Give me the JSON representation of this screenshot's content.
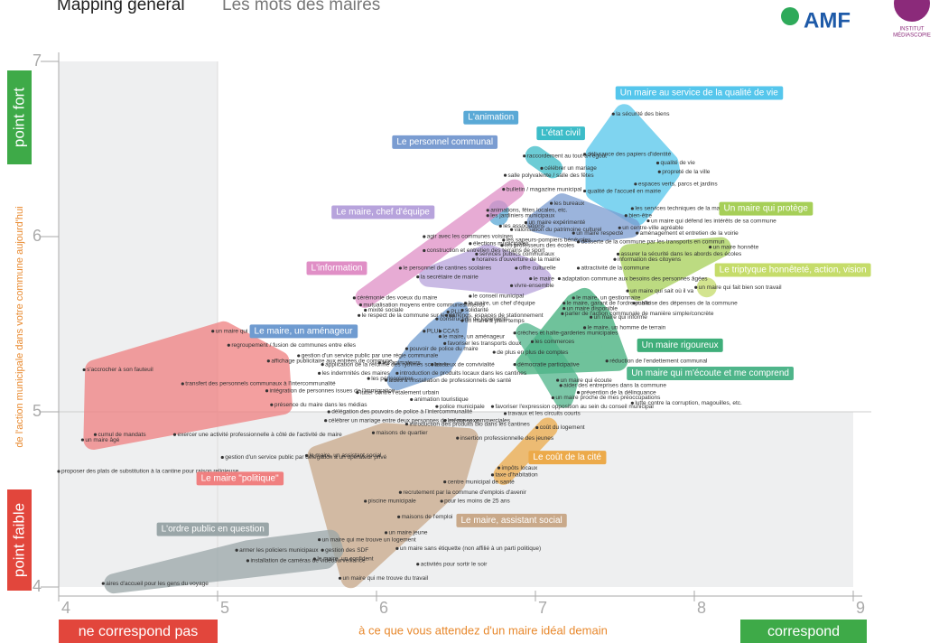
{
  "chart_data": {
    "type": "scatter",
    "title": "Mapping général",
    "subtitle": "Les mots des maires",
    "logos": [
      "AMF",
      "INSTITUT",
      "MÉDIASCOPIE"
    ],
    "y_label": "de l'action municipale dans votre commune aujourd'hui",
    "y_high": "point fort",
    "y_low": "point faible",
    "x_label": "à ce que vous attendez d'un maire idéal demain",
    "x_low": "ne correspond pas",
    "x_high": "correspond",
    "xlim": [
      4,
      9
    ],
    "ylim": [
      4,
      7
    ],
    "xticks": [
      4,
      5,
      6,
      7,
      8,
      9
    ],
    "yticks": [
      4,
      5,
      6,
      7
    ],
    "midpoint": {
      "x": 5,
      "y": 5
    },
    "groups": [
      {
        "name": "Un maire au service de la qualité de vie",
        "color": "#55c6ec",
        "x": 8.03,
        "y": 6.82
      },
      {
        "name": "L'animation",
        "color": "#5aa9d6",
        "x": 6.72,
        "y": 6.68
      },
      {
        "name": "L'état civil",
        "color": "#3cbcc8",
        "x": 7.16,
        "y": 6.59
      },
      {
        "name": "Le personnel communal",
        "color": "#7a9cd1",
        "x": 6.43,
        "y": 6.54
      },
      {
        "name": "Le maire, chef d'équipe",
        "color": "#b7a3dc",
        "x": 6.04,
        "y": 6.14
      },
      {
        "name": "L'information",
        "color": "#e08fc6",
        "x": 5.75,
        "y": 5.82
      },
      {
        "name": "Un maire qui protège",
        "color": "#a6cf58",
        "x": 8.45,
        "y": 6.16
      },
      {
        "name": "Le triptyque honnêteté, action, vision",
        "color": "#c5dc6a",
        "x": 8.62,
        "y": 5.81
      },
      {
        "name": "Le maire, un aménageur",
        "color": "#6f9bd0",
        "x": 5.54,
        "y": 5.46
      },
      {
        "name": "Un maire rigoureux",
        "color": "#3fae7a",
        "x": 7.91,
        "y": 5.38
      },
      {
        "name": "Un maire qui m'écoute et me comprend",
        "color": "#4fb58a",
        "x": 8.1,
        "y": 5.22
      },
      {
        "name": "Le maire \"politique\"",
        "color": "#f08080",
        "x": 5.14,
        "y": 4.62
      },
      {
        "name": "Le coût de la cité",
        "color": "#ecaa4a",
        "x": 7.2,
        "y": 4.74
      },
      {
        "name": "Le maire, assistant social",
        "color": "#c9a98a",
        "x": 6.85,
        "y": 4.38
      },
      {
        "name": "L'ordre public en question",
        "color": "#9aa6a8",
        "x": 4.97,
        "y": 4.33
      }
    ],
    "points": [
      {
        "label": "la sécurité des biens",
        "x": 7.49,
        "y": 6.7,
        "group": 0
      },
      {
        "label": "délivrance des papiers d'identité",
        "x": 7.31,
        "y": 6.47,
        "group": 0
      },
      {
        "label": "qualité de vie",
        "x": 7.77,
        "y": 6.42,
        "group": 0
      },
      {
        "label": "propreté de la ville",
        "x": 7.78,
        "y": 6.37,
        "group": 0
      },
      {
        "label": "espaces verts, parcs et jardins",
        "x": 7.63,
        "y": 6.3,
        "group": 0
      },
      {
        "label": "qualité de l'accueil en mairie",
        "x": 7.31,
        "y": 6.26,
        "group": 0
      },
      {
        "label": "les services techniques de la mairie",
        "x": 7.61,
        "y": 6.16,
        "group": 0
      },
      {
        "label": "bien-être",
        "x": 7.57,
        "y": 6.12,
        "group": 0
      },
      {
        "label": "raccordement au tout-à-l'égout",
        "x": 6.93,
        "y": 6.46,
        "group": 2
      },
      {
        "label": "célébrer un mariage",
        "x": 7.04,
        "y": 6.39,
        "group": 2
      },
      {
        "label": "salle polyvalente / salle des fêtes",
        "x": 6.81,
        "y": 6.35
      },
      {
        "label": "bulletin / magazine municipal",
        "x": 6.8,
        "y": 6.27,
        "group": 5
      },
      {
        "label": "les bureaux",
        "x": 7.1,
        "y": 6.19,
        "group": 3
      },
      {
        "label": "animations, fêtes locales, etc.",
        "x": 6.7,
        "y": 6.15,
        "group": 1
      },
      {
        "label": "les jardiniers municipaux",
        "x": 6.7,
        "y": 6.12,
        "group": 1
      },
      {
        "label": "les associations",
        "x": 6.78,
        "y": 6.06
      },
      {
        "label": "un maire expérimenté",
        "x": 6.94,
        "y": 6.08,
        "group": 3
      },
      {
        "label": "valorisation du patrimoine culturel",
        "x": 6.85,
        "y": 6.04
      },
      {
        "label": "agir avec les communes voisines",
        "x": 6.3,
        "y": 6.0,
        "color": "#2a3f9a"
      },
      {
        "label": "les sapeurs-pompiers bénévoles",
        "x": 6.8,
        "y": 5.98
      },
      {
        "label": "élections municipales",
        "x": 6.59,
        "y": 5.96
      },
      {
        "label": "les professeurs des écoles",
        "x": 6.79,
        "y": 5.95
      },
      {
        "label": "construction et entretien des terrains de sport",
        "x": 6.3,
        "y": 5.92,
        "group": 5
      },
      {
        "label": "services publics communaux",
        "x": 6.63,
        "y": 5.9,
        "group": 4
      },
      {
        "label": "horaires d'ouverture de la mairie",
        "x": 6.61,
        "y": 5.87,
        "group": 4
      },
      {
        "label": "le personnel de cantines scolaires",
        "x": 6.15,
        "y": 5.82
      },
      {
        "label": "offre culturelle",
        "x": 6.88,
        "y": 5.82,
        "group": 4
      },
      {
        "label": "la secrétaire de mairie",
        "x": 6.26,
        "y": 5.77,
        "group": 4
      },
      {
        "label": "le maire",
        "x": 6.97,
        "y": 5.76,
        "color": "#e0302a",
        "group": 4
      },
      {
        "label": "vivre-ensemble",
        "x": 6.85,
        "y": 5.72,
        "group": 4
      },
      {
        "label": "adaptation commune aux besoins des personnes âgées",
        "x": 7.15,
        "y": 5.76
      },
      {
        "label": "attractivité de la commune",
        "x": 7.27,
        "y": 5.82
      },
      {
        "label": "un maire respecté",
        "x": 7.24,
        "y": 6.02,
        "group": 3
      },
      {
        "label": "un centre-ville agréable",
        "x": 7.53,
        "y": 6.05,
        "group": 3
      },
      {
        "label": "aménagement et entretien de la voirie",
        "x": 7.64,
        "y": 6.02
      },
      {
        "label": "desserte de la commune par les transports en commun",
        "x": 7.27,
        "y": 5.97
      },
      {
        "label": "assurer la sécurité dans les abords des écoles",
        "x": 7.52,
        "y": 5.9,
        "group": 6
      },
      {
        "label": "information des citoyens",
        "x": 7.5,
        "y": 5.87
      },
      {
        "label": "un maire qui défend les intérêts de sa commune",
        "x": 7.71,
        "y": 6.09,
        "color": "#2a3f9a"
      },
      {
        "label": "un maire honnête",
        "x": 8.1,
        "y": 5.94,
        "group": 6
      },
      {
        "label": "un maire qui fait bien son travail",
        "x": 8.01,
        "y": 5.71,
        "group": 7
      },
      {
        "label": "un maire qui sait où il va",
        "x": 7.58,
        "y": 5.69,
        "group": 6
      },
      {
        "label": "le maire, un gestionnaire",
        "x": 7.24,
        "y": 5.65,
        "group": 9
      },
      {
        "label": "le maire, garant de l'ordre public",
        "x": 7.18,
        "y": 5.62,
        "group": 9
      },
      {
        "label": "maîtrise des dépenses de la commune",
        "x": 7.62,
        "y": 5.62
      },
      {
        "label": "un maire disponible",
        "x": 7.18,
        "y": 5.59
      },
      {
        "label": "parler de l'action communale de manière simple/concrète",
        "x": 7.17,
        "y": 5.56
      },
      {
        "label": "un maire qui informe",
        "x": 7.35,
        "y": 5.54,
        "group": 9
      },
      {
        "label": "le maire, un homme de terrain",
        "x": 7.31,
        "y": 5.48,
        "group": 9
      },
      {
        "label": "le conseil municipal",
        "x": 6.59,
        "y": 5.66
      },
      {
        "label": "le maire, un chef d'équipe",
        "x": 6.56,
        "y": 5.62
      },
      {
        "label": "solidarité",
        "x": 6.54,
        "y": 5.58
      },
      {
        "label": "parkings, espaces de stationnement",
        "x": 6.44,
        "y": 5.55,
        "group": 8
      },
      {
        "label": "cérémonie des voeux du maire",
        "x": 5.86,
        "y": 5.65,
        "group": 5
      },
      {
        "label": "mutualisation moyens entre communes/interco",
        "x": 5.9,
        "y": 5.61,
        "color": "#2a3f9a"
      },
      {
        "label": "mixité sociale",
        "x": 5.93,
        "y": 5.58
      },
      {
        "label": "PLU",
        "x": 6.45,
        "y": 5.57,
        "group": 8
      },
      {
        "label": "un maire à plein temps",
        "x": 6.54,
        "y": 5.52
      },
      {
        "label": "le respect de la commune sur le net",
        "x": 5.89,
        "y": 5.55
      },
      {
        "label": "construction de logements",
        "x": 6.38,
        "y": 5.53
      },
      {
        "label": "PLUI",
        "x": 6.3,
        "y": 5.46,
        "group": 8
      },
      {
        "label": "CCAS",
        "x": 6.4,
        "y": 5.46,
        "group": 8
      },
      {
        "label": "le maire, un aménageur",
        "x": 6.4,
        "y": 5.43,
        "group": 8
      },
      {
        "label": "crèches et halte-garderies municipales",
        "x": 6.87,
        "y": 5.45,
        "group": 10
      },
      {
        "label": "les commerces",
        "x": 6.98,
        "y": 5.4,
        "group": 10
      },
      {
        "label": "favoriser les transports doux",
        "x": 6.43,
        "y": 5.39,
        "group": 8
      },
      {
        "label": "pouvoir de police du maire",
        "x": 6.19,
        "y": 5.36,
        "group": 8
      },
      {
        "label": "regroupement / fusion de communes entre elles",
        "x": 5.07,
        "y": 5.38,
        "color": "#2a3f9a"
      },
      {
        "label": "gestion d'un service public par une régie communale",
        "x": 5.51,
        "y": 5.32
      },
      {
        "label": "de plus en plus de comptes",
        "x": 6.74,
        "y": 5.34
      },
      {
        "label": "les animateurs",
        "x": 6.02,
        "y": 5.28
      },
      {
        "label": "les lieux de convivialité",
        "x": 6.35,
        "y": 5.27,
        "group": 8
      },
      {
        "label": "démocratie participative",
        "x": 6.87,
        "y": 5.27,
        "group": 9
      },
      {
        "label": "réduction de l'endettement communal",
        "x": 7.45,
        "y": 5.29,
        "group": 9
      },
      {
        "label": "affichage publicitaire aux entrées de commune",
        "x": 5.32,
        "y": 5.29,
        "group": 11
      },
      {
        "label": "application de la réforme des rythmes scolaires",
        "x": 5.66,
        "y": 5.27
      },
      {
        "label": "les indemnités des maires",
        "x": 5.64,
        "y": 5.22
      },
      {
        "label": "introduction de produits locaux dans les cantines",
        "x": 6.13,
        "y": 5.22,
        "group": 8
      },
      {
        "label": "aides à l'installation de professionnels de santé",
        "x": 6.06,
        "y": 5.18,
        "group": 8
      },
      {
        "label": "les périscolaires",
        "x": 5.95,
        "y": 5.19
      },
      {
        "label": "un maire qui écoute",
        "x": 7.14,
        "y": 5.18,
        "group": 10
      },
      {
        "label": "aider des entreprises dans la commune",
        "x": 7.16,
        "y": 5.15
      },
      {
        "label": "prévention de la délinquance",
        "x": 7.27,
        "y": 5.11
      },
      {
        "label": "un maire proche de mes préoccupations",
        "x": 7.11,
        "y": 5.08,
        "group": 10
      },
      {
        "label": "lutte contre la corruption, magouilles, etc.",
        "x": 7.61,
        "y": 5.05
      },
      {
        "label": "lutter contre l'étalement urbain",
        "x": 5.88,
        "y": 5.11
      },
      {
        "label": "transfert des personnels communaux à l'intercommunalité",
        "x": 4.78,
        "y": 5.16,
        "color": "#2a3f9a"
      },
      {
        "label": "intégration de personnes issues de l'immigration",
        "x": 5.31,
        "y": 5.12,
        "group": 11
      },
      {
        "label": "animation touristique",
        "x": 6.22,
        "y": 5.07
      },
      {
        "label": "police municipale",
        "x": 6.38,
        "y": 5.03
      },
      {
        "label": "favoriser l'expression opposition au sein du conseil municipal",
        "x": 6.73,
        "y": 5.03
      },
      {
        "label": "travaux et les circuits courts",
        "x": 6.81,
        "y": 4.99
      },
      {
        "label": "présence du maire dans les médias",
        "x": 5.34,
        "y": 5.04,
        "group": 11
      },
      {
        "label": "délégation des pouvoirs de police à l'intercommunalité",
        "x": 5.7,
        "y": 5.0,
        "color": "#2a3f9a"
      },
      {
        "label": "célébrer un mariage entre deux personnes de même sexe",
        "x": 5.68,
        "y": 4.95
      },
      {
        "label": "les zones commerciales",
        "x": 6.43,
        "y": 4.95
      },
      {
        "label": "introduction des produits bio dans les cantines",
        "x": 6.19,
        "y": 4.93
      },
      {
        "label": "coût du logement",
        "x": 7.01,
        "y": 4.91,
        "group": 12
      },
      {
        "label": "un maire qui a des ambitions politiques",
        "x": 4.97,
        "y": 5.46,
        "group": 11
      },
      {
        "label": "s'accrocher à son fauteuil",
        "x": 4.16,
        "y": 5.24,
        "group": 11
      },
      {
        "label": "cumul de mandats",
        "x": 4.23,
        "y": 4.87,
        "group": 11
      },
      {
        "label": "un maire âgé",
        "x": 4.15,
        "y": 4.84,
        "group": 11
      },
      {
        "label": "exercer une activité professionnelle à côté de l'activité de maire",
        "x": 4.73,
        "y": 4.87
      },
      {
        "label": "maisons de quartier",
        "x": 5.98,
        "y": 4.88,
        "group": 13
      },
      {
        "label": "insertion professionnelle des jeunes",
        "x": 6.51,
        "y": 4.85,
        "group": 13
      },
      {
        "label": "gestion d'un service public par délégation à un opérateur privé",
        "x": 5.03,
        "y": 4.74
      },
      {
        "label": "le maire, un assistant social",
        "x": 5.56,
        "y": 4.75,
        "group": 13
      },
      {
        "label": "impôts locaux",
        "x": 6.77,
        "y": 4.68,
        "group": 12
      },
      {
        "label": "taxe d'habitation",
        "x": 6.73,
        "y": 4.64,
        "group": 12
      },
      {
        "label": "proposer des plats de substitution à la cantine pour raison religieuse",
        "x": 4.0,
        "y": 4.66
      },
      {
        "label": "centre municipal de santé",
        "x": 6.43,
        "y": 4.6,
        "group": 13
      },
      {
        "label": "recrutement par la commune d'emplois d'avenir",
        "x": 6.15,
        "y": 4.54,
        "group": 13
      },
      {
        "label": "pour les moins de 25 ans",
        "x": 6.41,
        "y": 4.49
      },
      {
        "label": "piscine municipale",
        "x": 5.93,
        "y": 4.49
      },
      {
        "label": "maisons de l'emploi",
        "x": 6.14,
        "y": 4.4
      },
      {
        "label": "un maire jeune",
        "x": 6.06,
        "y": 4.31
      },
      {
        "label": "un maire qui me trouve un logement",
        "x": 5.64,
        "y": 4.27,
        "group": 14
      },
      {
        "label": "armer les policiers municipaux",
        "x": 5.12,
        "y": 4.21,
        "group": 14
      },
      {
        "label": "installation de caméras de vidéosurveillance",
        "x": 5.19,
        "y": 4.15,
        "group": 14
      },
      {
        "label": "gestion des SDF",
        "x": 5.66,
        "y": 4.21,
        "group": 14
      },
      {
        "label": "le maire, un confident",
        "x": 5.61,
        "y": 4.16,
        "group": 14
      },
      {
        "label": "un maire sans étiquette (non affilié à un parti politique)",
        "x": 6.13,
        "y": 4.22
      },
      {
        "label": "activités pour sortir le soir",
        "x": 6.26,
        "y": 4.13
      },
      {
        "label": "aires d'accueil pour les gens du voyage",
        "x": 4.28,
        "y": 4.02,
        "group": 14
      },
      {
        "label": "un maire qui me trouve du travail",
        "x": 5.77,
        "y": 4.05,
        "group": 13
      }
    ]
  }
}
